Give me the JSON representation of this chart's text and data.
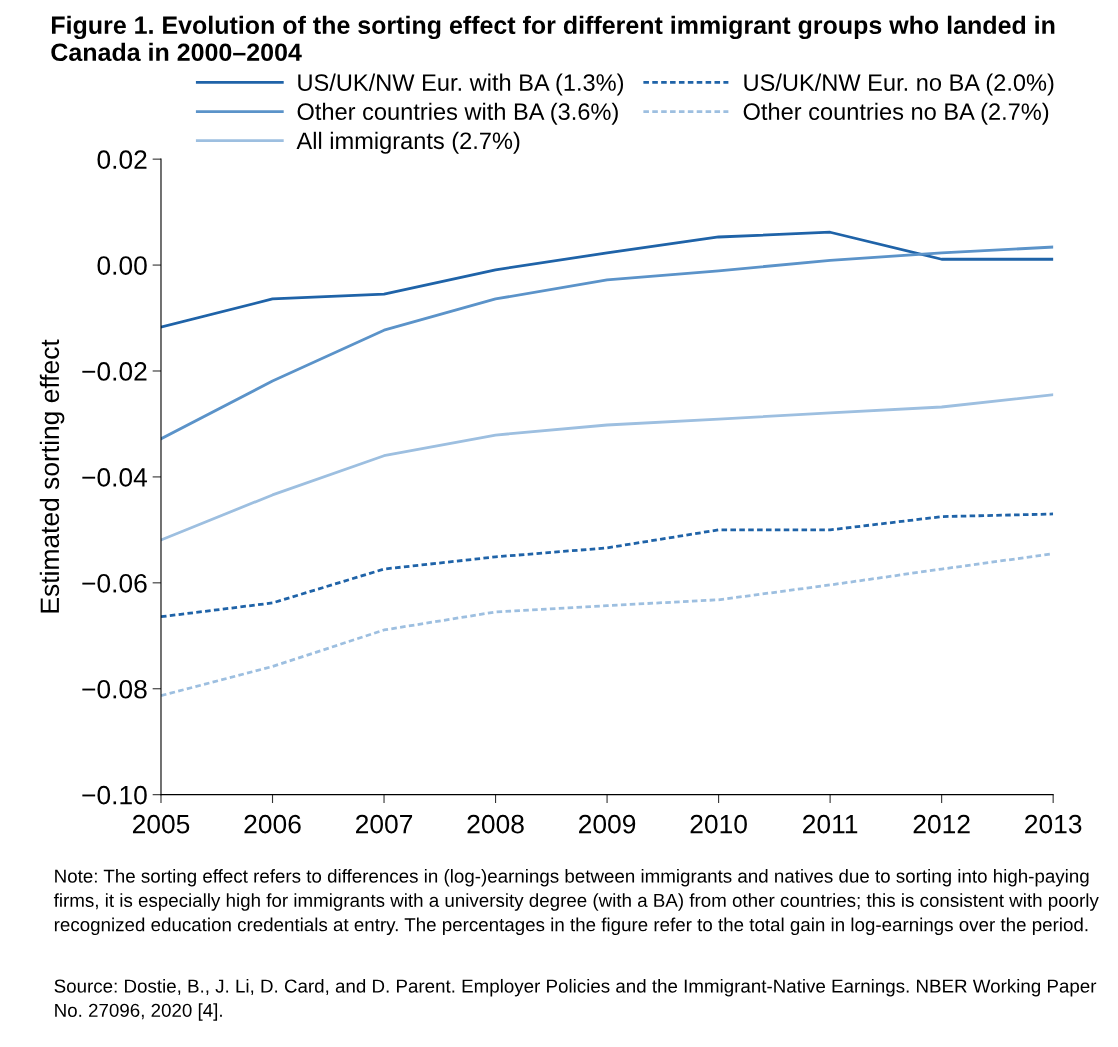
{
  "chart_data": {
    "type": "line",
    "title": "Figure 1. Evolution of the sorting effect for different immigrant groups who landed in Canada in 2000–2004",
    "ylabel": "Estimated sorting effect",
    "x": [
      2005,
      2006,
      2007,
      2008,
      2009,
      2010,
      2011,
      2012,
      2013
    ],
    "series": [
      {
        "name": "US/UK/NW Eur. with BA (1.3%)",
        "color": "#1f63a8",
        "line_style": "solid",
        "values": [
          -0.0117,
          -0.0064,
          -0.0055,
          -0.0009,
          0.0023,
          0.0053,
          0.0062,
          0.0011,
          0.0011
        ]
      },
      {
        "name": "Other countries with BA (3.6%)",
        "color": "#5b93c9",
        "line_style": "solid",
        "values": [
          -0.0328,
          -0.0219,
          -0.0123,
          -0.0064,
          -0.0028,
          -0.0011,
          0.0009,
          0.0023,
          0.0034
        ]
      },
      {
        "name": "All immigrants (2.7%)",
        "color": "#9dbfe0",
        "line_style": "solid",
        "values": [
          -0.0519,
          -0.0434,
          -0.036,
          -0.0321,
          -0.0302,
          -0.0291,
          -0.0279,
          -0.0268,
          -0.0245
        ]
      },
      {
        "name": "US/UK/NW Eur. no BA (2.0%)",
        "color": "#1f63a8",
        "line_style": "dotted",
        "values": [
          -0.0664,
          -0.0638,
          -0.0574,
          -0.0551,
          -0.0534,
          -0.05,
          -0.05,
          -0.0475,
          -0.047
        ]
      },
      {
        "name": "Other countries no BA (2.7%)",
        "color": "#9dbfe0",
        "line_style": "dotted",
        "values": [
          -0.0813,
          -0.0758,
          -0.0689,
          -0.0655,
          -0.0643,
          -0.0632,
          -0.0604,
          -0.0574,
          -0.0545
        ]
      }
    ],
    "xlim": [
      2005,
      2013
    ],
    "xticks": [
      2005,
      2006,
      2007,
      2008,
      2009,
      2010,
      2011,
      2012,
      2013
    ],
    "ylim": [
      -0.1,
      0.02
    ],
    "yticks": [
      {
        "value": 0.02,
        "label": "0.02"
      },
      {
        "value": 0,
        "label": "0.00"
      },
      {
        "value": -0.02,
        "label": "−0.02"
      },
      {
        "value": -0.04,
        "label": "−0.04"
      },
      {
        "value": -0.06,
        "label": "−0.06"
      },
      {
        "value": -0.08,
        "label": "−0.08"
      },
      {
        "value": -0.1,
        "label": "−0.10"
      }
    ],
    "grid": false,
    "legend": "top",
    "marker": "none",
    "annotations": [
      "Note: The sorting effect refers to differences in (log-)earnings between immigrants and natives due to sorting into high-paying firms, it is especially high for immigrants with a university degree (with a BA) from other countries; this is consistent with poorly recognized education credentials at entry. The percentages in the figure refer to the total gain in log-earnings over the period.",
      "Source: Dostie, B., J. Li, D. Card, and D. Parent. Employer Policies and the Immigrant-Native Earnings. NBER Working Paper No. 27096, 2020 [4]."
    ]
  }
}
